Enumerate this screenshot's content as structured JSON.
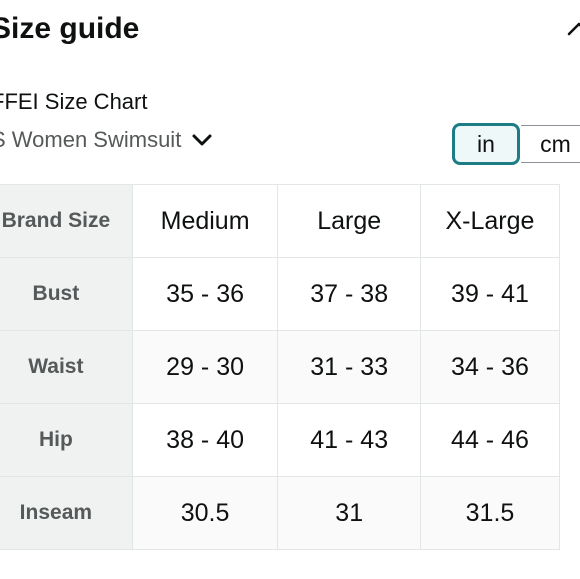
{
  "header": {
    "title": "Size guide"
  },
  "chart_name": "FFEI Size Chart",
  "category": {
    "selected": "S Women Swimsuit"
  },
  "units": {
    "options": [
      "in",
      "cm"
    ],
    "selected": "in"
  },
  "table": {
    "header_label": "Brand Size",
    "sizes": [
      "Medium",
      "Large",
      "X-Large"
    ],
    "rows": [
      {
        "label": "Bust",
        "values": [
          "35 - 36",
          "37 - 38",
          "39 - 41"
        ]
      },
      {
        "label": "Waist",
        "values": [
          "29 - 30",
          "31 - 33",
          "34 - 36"
        ]
      },
      {
        "label": "Hip",
        "values": [
          "38 - 40",
          "41 - 43",
          "44 - 46"
        ]
      },
      {
        "label": "Inseam",
        "values": [
          "30.5",
          "31",
          "31.5"
        ]
      }
    ]
  },
  "colors": {
    "selected_accent": "#1d7d84",
    "header_bg": "#f0f2f2",
    "muted_text": "#565959"
  }
}
